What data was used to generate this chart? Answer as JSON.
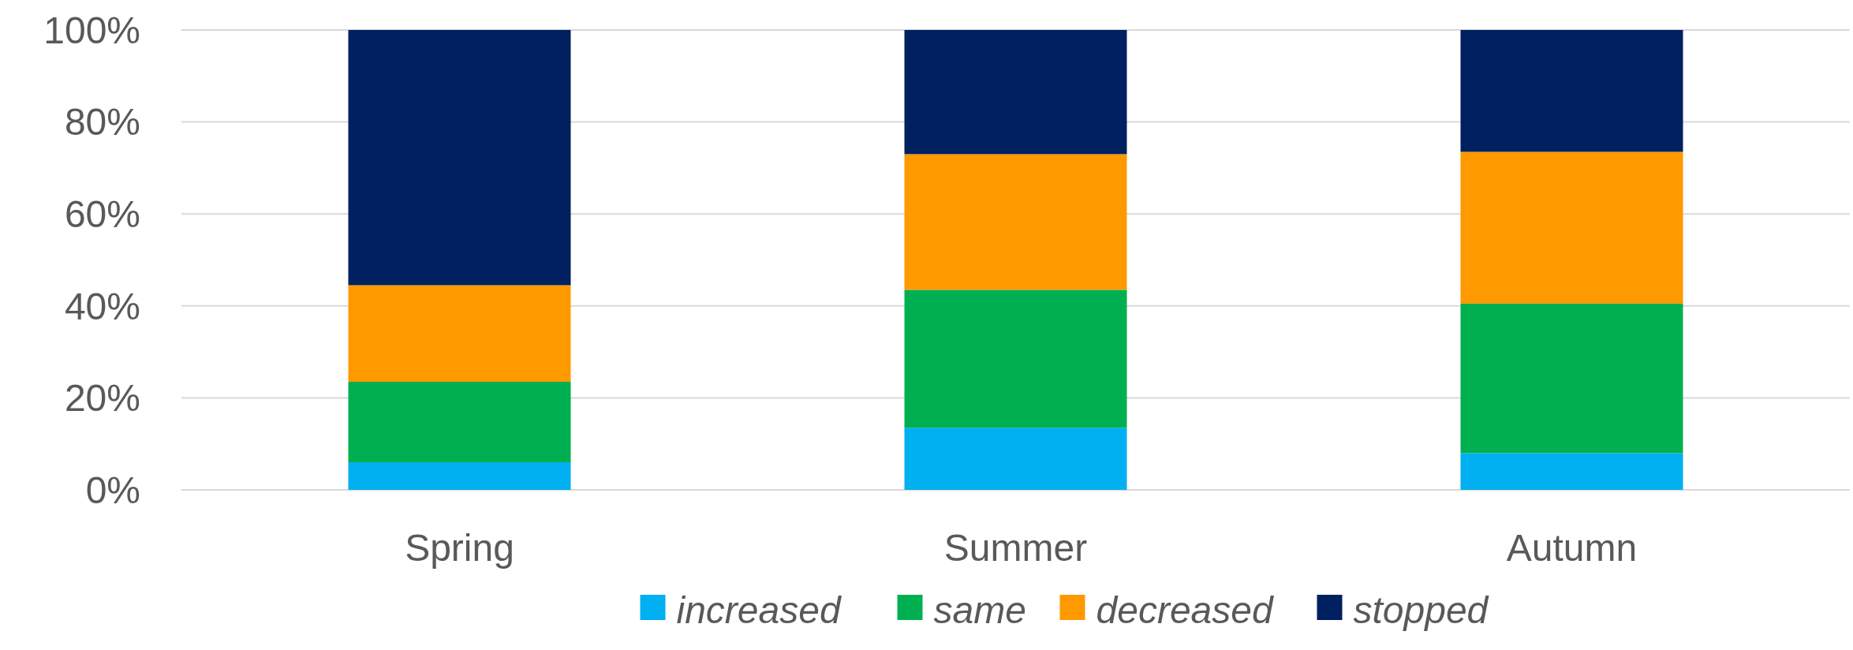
{
  "chart_data": {
    "type": "bar",
    "stacked": true,
    "categories": [
      "Spring",
      "Summer",
      "Autumn"
    ],
    "series": [
      {
        "name": "increased",
        "color": "#00b0f0",
        "values": [
          6,
          13.5,
          8
        ]
      },
      {
        "name": "same",
        "color": "#00b050",
        "values": [
          17.5,
          30,
          32.5
        ]
      },
      {
        "name": "decreased",
        "color": "#ff9900",
        "values": [
          21,
          29.5,
          33
        ]
      },
      {
        "name": "stopped",
        "color": "#002060",
        "values": [
          55.5,
          27,
          26.5
        ]
      }
    ],
    "ylim": [
      0,
      100
    ],
    "yticks": [
      {
        "value": 0,
        "label": "0%"
      },
      {
        "value": 20,
        "label": "20%"
      },
      {
        "value": 40,
        "label": "40%"
      },
      {
        "value": 60,
        "label": "60%"
      },
      {
        "value": 80,
        "label": "80%"
      },
      {
        "value": 100,
        "label": "100%"
      }
    ],
    "grid": "y",
    "legend": "bottom"
  }
}
